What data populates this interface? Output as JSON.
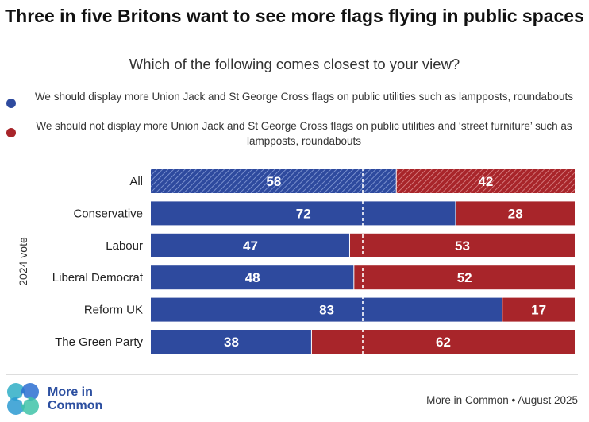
{
  "title": "Three in five Britons want to see more flags flying in public spaces",
  "subtitle": "Which of the following comes closest to your view?",
  "legend": [
    {
      "text": "We should display more Union Jack and St George Cross flags on public utilities such as lampposts, roundabouts",
      "color": "#2e4a9e"
    },
    {
      "text": "We should not display more Union Jack and St George Cross flags on public utilities and ‘street furniture’ such as lampposts, roundabouts",
      "color": "#a8252a"
    }
  ],
  "footer": {
    "logo_line1": "More in",
    "logo_line2": "Common",
    "source": "More in Common • August 2025"
  },
  "chart_data": {
    "type": "bar",
    "orientation": "horizontal",
    "stacked": true,
    "ylabel": "2024 vote",
    "xlim": [
      0,
      100
    ],
    "reference_line": 50,
    "categories": [
      "All",
      "Conservative",
      "Labour",
      "Liberal Democrat",
      "Reform UK",
      "The Green Party"
    ],
    "series": [
      {
        "name": "We should display more Union Jack and St George Cross flags on public utilities such as lampposts, roundabouts",
        "color": "#2e4a9e",
        "values": [
          58,
          72,
          47,
          48,
          83,
          38
        ]
      },
      {
        "name": "We should not display more Union Jack and St George Cross flags on public utilities and ‘street furniture’ such as lampposts, roundabouts",
        "color": "#a8252a",
        "values": [
          42,
          28,
          53,
          52,
          17,
          62
        ]
      }
    ],
    "hatched_categories": [
      "All"
    ]
  }
}
